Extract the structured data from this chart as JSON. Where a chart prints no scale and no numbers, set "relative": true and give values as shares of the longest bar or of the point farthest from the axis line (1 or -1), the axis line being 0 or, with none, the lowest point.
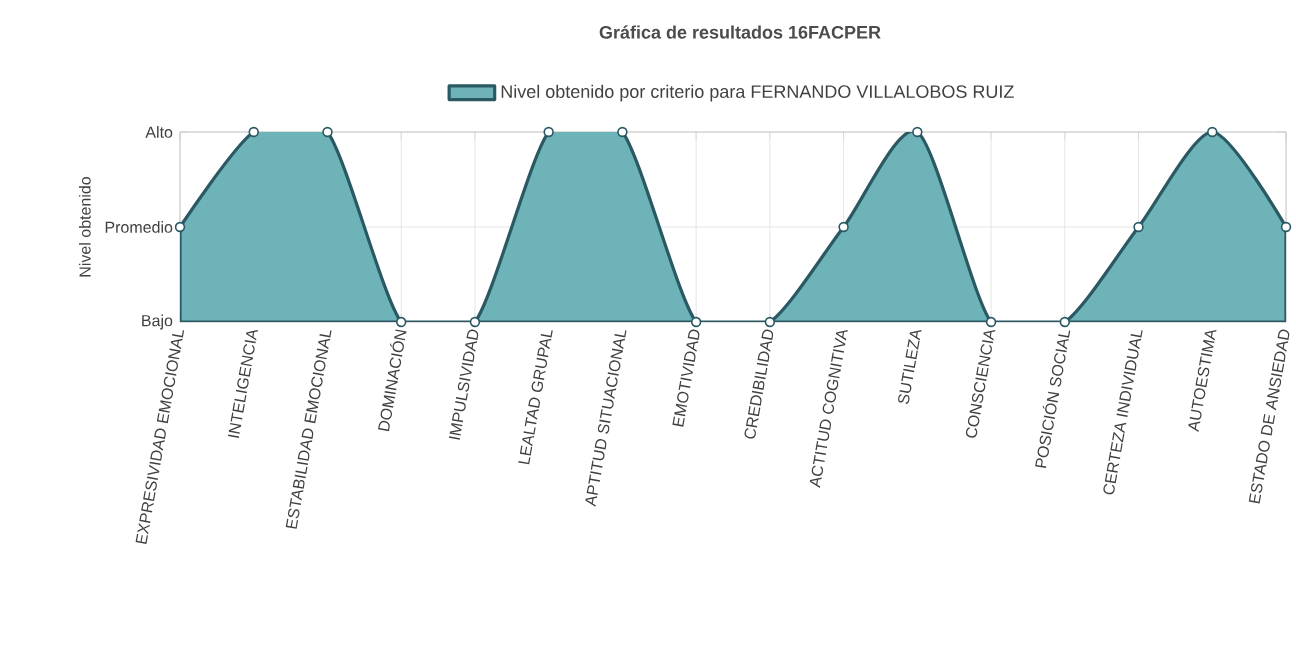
{
  "chart_data": {
    "type": "area",
    "title": "Gráfica de resultados 16FACPER",
    "ylabel": "Nivel obtenido",
    "categories": [
      "EXPRESIVIDAD EMOCIONAL",
      "INTELIGENCIA",
      "ESTABILIDAD EMOCIONAL",
      "DOMINACIÓN",
      "IMPULSIVIDAD",
      "LEALTAD GRUPAL",
      "APTITUD SITUACIONAL",
      "EMOTIVIDAD",
      "CREDIBILIDAD",
      "ACTITUD COGNITIVA",
      "SUTILEZA",
      "CONSCIENCIA",
      "POSICIÓN SOCIAL",
      "CERTEZA INDIVIDUAL",
      "AUTOESTIMA",
      "ESTADO DE ANSIEDAD"
    ],
    "series": [
      {
        "name": "Nivel obtenido por criterio para FERNANDO VILLALOBOS RUIZ",
        "color": "#6db3b7",
        "values": [
          0.5,
          1,
          1,
          0,
          0,
          1,
          1,
          0,
          0,
          0.5,
          1,
          0,
          0,
          0.5,
          1,
          0.5
        ]
      }
    ],
    "relative": true,
    "annotations": [
      "Bajo",
      "Promedio",
      "Alto"
    ],
    "grid": true,
    "legend": "top",
    "marker": "circle",
    "line_style": "solid"
  }
}
